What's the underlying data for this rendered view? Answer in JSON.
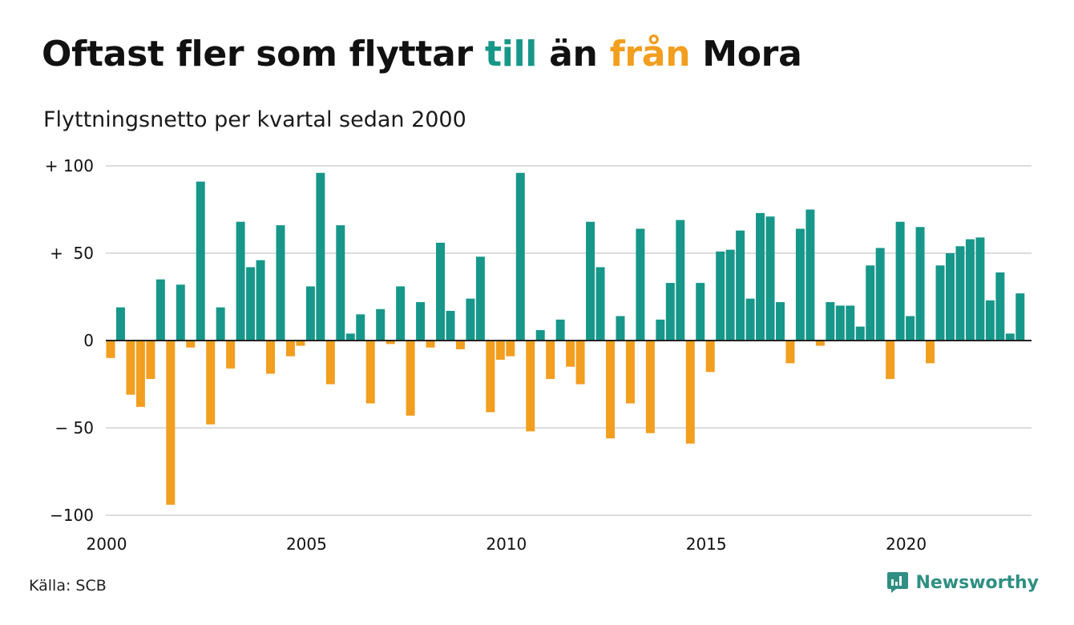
{
  "header": {
    "title_part1": "Oftast fler som flyttar",
    "title_till": "till",
    "title_part2": "än",
    "title_fran": "från",
    "title_part3": "Mora",
    "subtitle": "Flyttningsnetto per kvartal sedan 2000"
  },
  "footer": {
    "source": "Källa: SCB",
    "brand": "Newsworthy",
    "brand_icon": "newsworthy-logo-icon"
  },
  "colors": {
    "positive": "#17978a",
    "negative": "#f29e1f",
    "grid": "#dddddd",
    "zero_line": "#222222",
    "brand": "#2f8f82"
  },
  "chart_data": {
    "type": "bar",
    "title": "Oftast fler som flyttar till än från Mora",
    "subtitle": "Flyttningsnetto per kvartal sedan 2000",
    "x_start": "2000-Q1",
    "x_ticks": [
      "2000",
      "2005",
      "2010",
      "2015",
      "2020"
    ],
    "y_ticks": [
      {
        "value": 100,
        "label": "+ 100"
      },
      {
        "value": 50,
        "label": "+  50"
      },
      {
        "value": 0,
        "label": "0"
      },
      {
        "value": -50,
        "label": "− 50"
      },
      {
        "value": -100,
        "label": "−100"
      }
    ],
    "ylim": [
      -100,
      100
    ],
    "grid": true,
    "values": [
      -10,
      19,
      -31,
      -38,
      -22,
      35,
      -94,
      32,
      -4,
      91,
      -48,
      19,
      -16,
      68,
      42,
      46,
      -19,
      66,
      -9,
      -3,
      31,
      96,
      -25,
      66,
      4,
      15,
      -36,
      18,
      -2,
      31,
      -43,
      22,
      -4,
      56,
      17,
      -5,
      24,
      48,
      -41,
      -11,
      -9,
      96,
      -52,
      6,
      -22,
      12,
      -15,
      -25,
      68,
      42,
      -56,
      14,
      -36,
      64,
      -53,
      12,
      33,
      69,
      -59,
      33,
      -18,
      51,
      52,
      63,
      24,
      73,
      71,
      22,
      -13,
      64,
      75,
      -3,
      22,
      20,
      20,
      8,
      43,
      53,
      -22,
      68,
      14,
      65,
      -13,
      43,
      50,
      54,
      58,
      59,
      23,
      39,
      4,
      27
    ]
  }
}
